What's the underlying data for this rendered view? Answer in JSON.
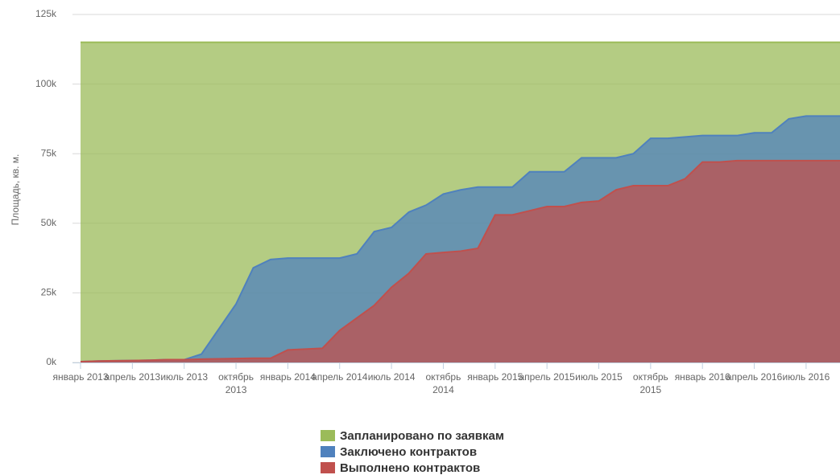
{
  "chart_data": {
    "type": "area",
    "y_label": "Площадь, кв. м.",
    "categories": [
      "январь 2013",
      null,
      null,
      "апрель 2013",
      null,
      null,
      "июль 2013",
      null,
      null,
      "октябрь 2013",
      null,
      null,
      "январь 2014",
      null,
      null,
      "апрель 2014",
      null,
      null,
      "июль 2014",
      null,
      null,
      "октябрь 2014",
      null,
      null,
      "январь 2015",
      null,
      null,
      "апрель 2015",
      null,
      null,
      "июль 2015",
      null,
      null,
      "октябрь 2015",
      null,
      null,
      "январь 2016",
      null,
      null,
      "апрель 2016",
      null,
      null,
      "июль 2016",
      null,
      null
    ],
    "series": [
      {
        "name": "Запланировано по заявкам",
        "color": "#9bbb59",
        "values": [
          115,
          115,
          115,
          115,
          115,
          115,
          115,
          115,
          115,
          115,
          115,
          115,
          115,
          115,
          115,
          115,
          115,
          115,
          115,
          115,
          115,
          115,
          115,
          115,
          115,
          115,
          115,
          115,
          115,
          115,
          115,
          115,
          115,
          115,
          115,
          115,
          115,
          115,
          115,
          115,
          115,
          115,
          115,
          115,
          115
        ]
      },
      {
        "name": "Заключено контрактов",
        "color": "#4f81bd",
        "values": [
          0.3,
          0.5,
          0.6,
          0.7,
          0.8,
          1,
          1,
          3,
          12,
          21,
          34,
          37,
          37.5,
          37.5,
          37.5,
          37.5,
          39,
          47,
          48.5,
          54,
          56.5,
          60.5,
          62,
          63,
          63,
          63,
          68.5,
          68.5,
          68.5,
          73.5,
          73.5,
          73.5,
          75,
          80.5,
          80.5,
          81,
          81.5,
          81.5,
          81.5,
          82.5,
          82.5,
          87.5,
          88.5,
          88.5,
          88.5
        ]
      },
      {
        "name": "Выполнено контрактов",
        "color": "#c0504d",
        "values": [
          0.3,
          0.5,
          0.6,
          0.7,
          0.8,
          1,
          1,
          1.2,
          1.3,
          1.4,
          1.5,
          1.5,
          4.5,
          4.8,
          5.1,
          11.5,
          16,
          20.5,
          27,
          32,
          39,
          39.5,
          40,
          41,
          53,
          53,
          54.5,
          56,
          56,
          57.5,
          58,
          62,
          63.5,
          63.5,
          63.5,
          66,
          72,
          72,
          72.5,
          72.5,
          72.5,
          72.5,
          72.5,
          72.5,
          72.5
        ]
      }
    ],
    "ylim": [
      0,
      125
    ],
    "yticks": [
      {
        "value": 0,
        "label": "0k"
      },
      {
        "value": 25,
        "label": "25k"
      },
      {
        "value": 50,
        "label": "50k"
      },
      {
        "value": 75,
        "label": "75k"
      },
      {
        "value": 100,
        "label": "100k"
      },
      {
        "value": 125,
        "label": "125k"
      }
    ],
    "grid": true,
    "fill_opacity": 0.75,
    "legend": "bottom"
  }
}
